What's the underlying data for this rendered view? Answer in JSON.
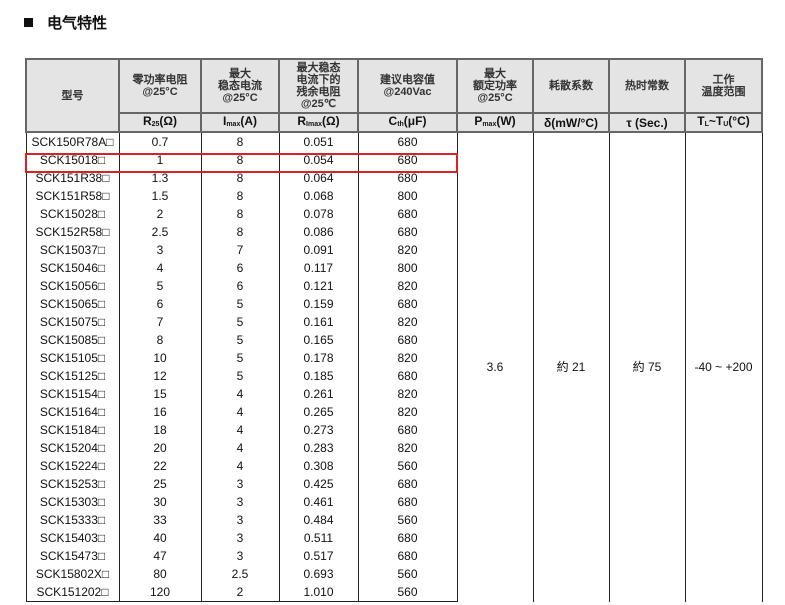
{
  "section_title": "电气特性",
  "headers": [
    {
      "top": "型号",
      "unit": ""
    },
    {
      "top": "零功率电阻\n@25°C",
      "unit_main": "R",
      "unit_sub": "25",
      "unit_rest": "(Ω)"
    },
    {
      "top": "最大\n稳态电流\n@25°C",
      "unit_main": "I",
      "unit_sub": "max",
      "unit_rest": "(A)"
    },
    {
      "top": "最大稳态\n电流下的\n残余电阻\n@25℃",
      "unit_main": "R",
      "unit_sub": "Imax",
      "unit_rest": "(Ω)"
    },
    {
      "top": "建议电容值\n@240Vac",
      "unit_main": "C",
      "unit_sub": "th",
      "unit_rest": "(μF)"
    },
    {
      "top": "最大\n额定功率\n@25°C",
      "unit_main": "P",
      "unit_sub": "max",
      "unit_rest": "(W)"
    },
    {
      "top": "耗散系数",
      "unit_main": "δ(mW/°C)",
      "unit_sub": "",
      "unit_rest": ""
    },
    {
      "top": "热时常数",
      "unit_main": "τ (Sec.)",
      "unit_sub": "",
      "unit_rest": ""
    },
    {
      "top": "工作\n温度范围",
      "unit_main": "T",
      "unit_sub": "L",
      "unit_rest": "~T",
      "unit_sub2": "U",
      "unit_rest2": "(°C)"
    }
  ],
  "rows": [
    [
      "SCK150R78A□",
      "0.7",
      "8",
      "0.051",
      "680"
    ],
    [
      "SCK15018□",
      "1",
      "8",
      "0.054",
      "680"
    ],
    [
      "SCK151R38□",
      "1.3",
      "8",
      "0.064",
      "680"
    ],
    [
      "SCK151R58□",
      "1.5",
      "8",
      "0.068",
      "800"
    ],
    [
      "SCK15028□",
      "2",
      "8",
      "0.078",
      "680"
    ],
    [
      "SCK152R58□",
      "2.5",
      "8",
      "0.086",
      "680"
    ],
    [
      "SCK15037□",
      "3",
      "7",
      "0.091",
      "820"
    ],
    [
      "SCK15046□",
      "4",
      "6",
      "0.117",
      "800"
    ],
    [
      "SCK15056□",
      "5",
      "6",
      "0.121",
      "820"
    ],
    [
      "SCK15065□",
      "6",
      "5",
      "0.159",
      "680"
    ],
    [
      "SCK15075□",
      "7",
      "5",
      "0.161",
      "820"
    ],
    [
      "SCK15085□",
      "8",
      "5",
      "0.165",
      "680"
    ],
    [
      "SCK15105□",
      "10",
      "5",
      "0.178",
      "820"
    ],
    [
      "SCK15125□",
      "12",
      "5",
      "0.185",
      "680"
    ],
    [
      "SCK15154□",
      "15",
      "4",
      "0.261",
      "820"
    ],
    [
      "SCK15164□",
      "16",
      "4",
      "0.265",
      "820"
    ],
    [
      "SCK15184□",
      "18",
      "4",
      "0.273",
      "680"
    ],
    [
      "SCK15204□",
      "20",
      "4",
      "0.283",
      "820"
    ],
    [
      "SCK15224□",
      "22",
      "4",
      "0.308",
      "560"
    ],
    [
      "SCK15253□",
      "25",
      "3",
      "0.425",
      "680"
    ],
    [
      "SCK15303□",
      "30",
      "3",
      "0.461",
      "680"
    ],
    [
      "SCK15333□",
      "33",
      "3",
      "0.484",
      "560"
    ],
    [
      "SCK15403□",
      "40",
      "3",
      "0.511",
      "680"
    ],
    [
      "SCK15473□",
      "47",
      "3",
      "0.517",
      "680"
    ],
    [
      "SCK15802X□",
      "80",
      "2.5",
      "0.693",
      "560"
    ],
    [
      "SCK151202□",
      "120",
      "2",
      "1.010",
      "560"
    ]
  ],
  "shared": {
    "pmax": "3.6",
    "dissipation": "約 21",
    "time_constant": "約 75",
    "temp_range": "-40 ~ +200"
  },
  "highlight_row": 1,
  "highlight_color": "#e02020"
}
